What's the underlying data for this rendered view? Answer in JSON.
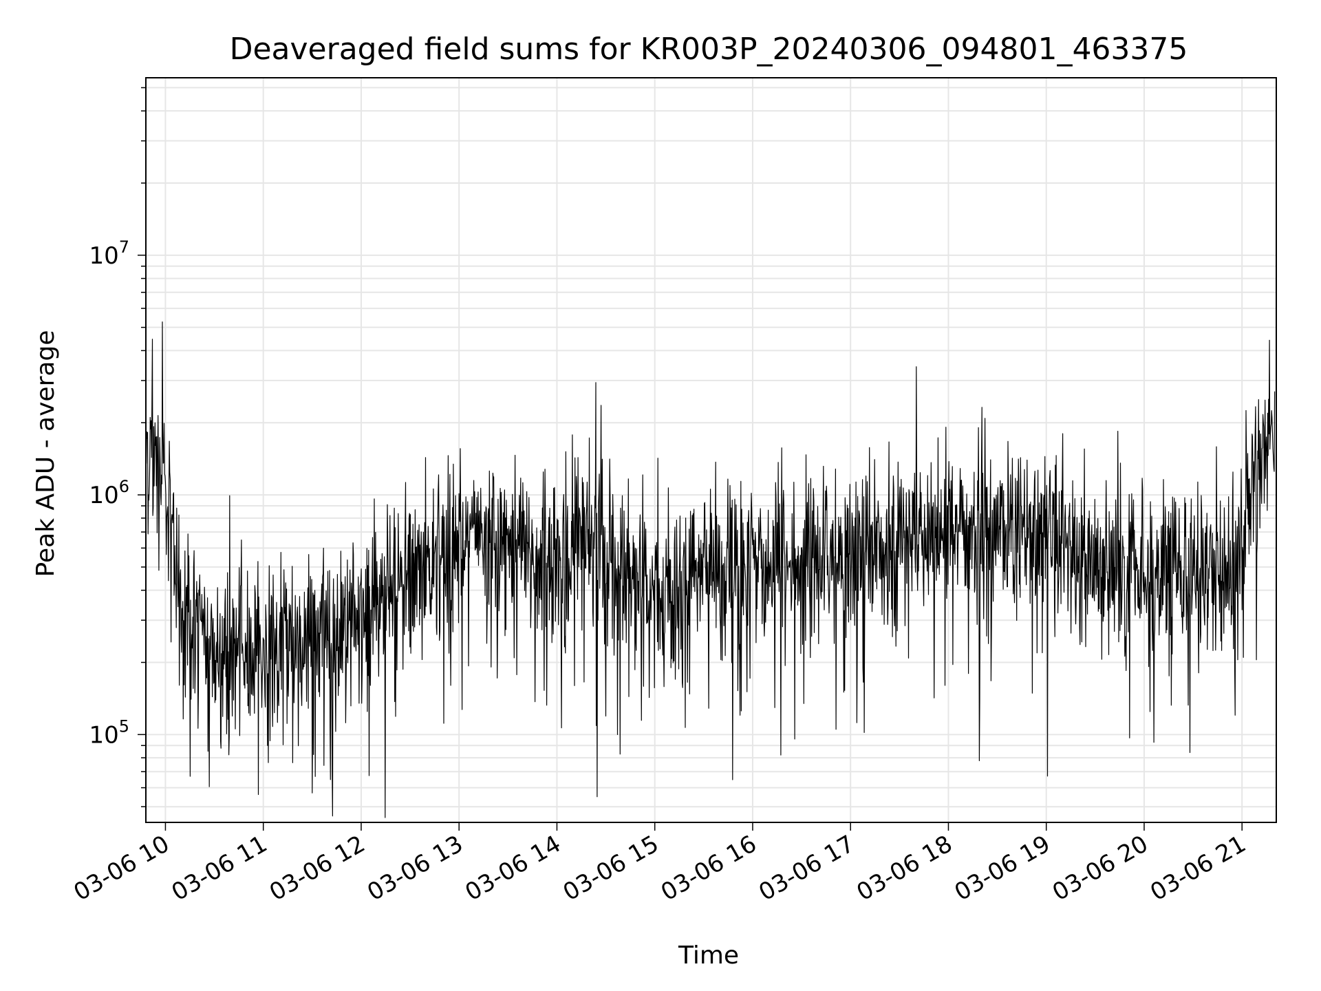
{
  "chart_data": {
    "type": "line",
    "title": "Deaveraged field sums for KR003P_20240306_094801_463375",
    "xlabel": "Time",
    "ylabel": "Peak ADU - average",
    "y_scale": "log",
    "ylim": [
      43000,
      55000000
    ],
    "xlim": [
      "03-06 09:48",
      "03-06 21:21"
    ],
    "grid": true,
    "line_color": "#000000",
    "grid_color": "#e6e6e6",
    "x_ticks": [
      "03-06 10",
      "03-06 11",
      "03-06 12",
      "03-06 13",
      "03-06 14",
      "03-06 15",
      "03-06 16",
      "03-06 17",
      "03-06 18",
      "03-06 19",
      "03-06 20",
      "03-06 21"
    ],
    "y_ticks": [
      {
        "value": 100000,
        "base": "10",
        "exp": "5"
      },
      {
        "value": 1000000,
        "base": "10",
        "exp": "6"
      },
      {
        "value": 10000000,
        "base": "10",
        "exp": "7"
      }
    ],
    "series": [
      {
        "x": [
          "03-06 09:48",
          "03-06 09:55",
          "03-06 10:00",
          "03-06 10:05",
          "03-06 10:10",
          "03-06 10:20",
          "03-06 10:30",
          "03-06 10:45",
          "03-06 11:00",
          "03-06 11:15",
          "03-06 11:30",
          "03-06 11:45",
          "03-06 12:00",
          "03-06 12:15",
          "03-06 12:30",
          "03-06 12:45",
          "03-06 13:00",
          "03-06 13:15",
          "03-06 13:30",
          "03-06 13:45",
          "03-06 14:00",
          "03-06 14:15",
          "03-06 14:30",
          "03-06 14:45",
          "03-06 15:00",
          "03-06 15:15",
          "03-06 15:30",
          "03-06 15:45",
          "03-06 16:00",
          "03-06 16:15",
          "03-06 16:30",
          "03-06 16:45",
          "03-06 17:00",
          "03-06 17:15",
          "03-06 17:30",
          "03-06 17:45",
          "03-06 18:00",
          "03-06 18:15",
          "03-06 18:30",
          "03-06 18:45",
          "03-06 19:00",
          "03-06 19:15",
          "03-06 19:30",
          "03-06 19:45",
          "03-06 20:00",
          "03-06 20:15",
          "03-06 20:30",
          "03-06 20:45",
          "03-06 21:00",
          "03-06 21:05",
          "03-06 21:10",
          "03-06 21:15",
          "03-06 21:20"
        ],
        "values": [
          1600000,
          1300000,
          1200000,
          700000,
          350000,
          260000,
          230000,
          220000,
          210000,
          230000,
          250000,
          280000,
          310000,
          360000,
          430000,
          520000,
          620000,
          640000,
          600000,
          520000,
          560000,
          600000,
          520000,
          450000,
          380000,
          420000,
          480000,
          520000,
          500000,
          470000,
          520000,
          560000,
          560000,
          600000,
          640000,
          680000,
          720000,
          740000,
          700000,
          680000,
          640000,
          580000,
          520000,
          480000,
          460000,
          470000,
          500000,
          490000,
          580000,
          1300000,
          1600000,
          1700000,
          1800000
        ]
      }
    ]
  }
}
